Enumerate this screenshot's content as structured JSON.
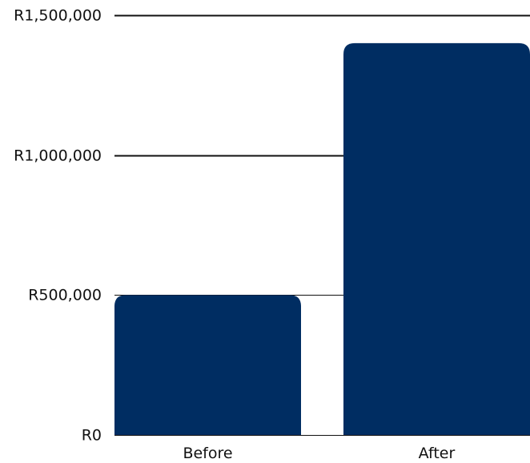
{
  "chart_data": {
    "type": "bar",
    "categories": [
      "Before",
      "After"
    ],
    "values": [
      500000,
      1400000
    ],
    "ylim": [
      0,
      1500000
    ],
    "yticks": [
      0,
      500000,
      1000000,
      1500000
    ],
    "ytick_labels": [
      "R0",
      "R500,000",
      "R1,000,000",
      "R1,500,000"
    ],
    "grid": true,
    "legend": "none",
    "title": "",
    "xlabel": "",
    "ylabel": "",
    "colors": {
      "bar": "#002D62",
      "grid": "#111111",
      "text": "#111111"
    }
  }
}
